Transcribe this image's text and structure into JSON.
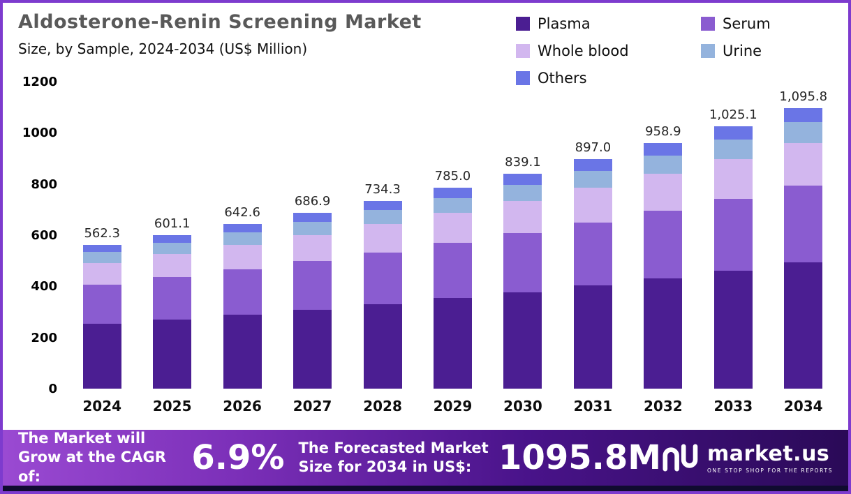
{
  "header": {
    "title": "Aldosterone-Renin Screening Market",
    "subtitle": "Size, by Sample, 2024-2034 (US$ Million)"
  },
  "chart_data": {
    "type": "bar",
    "stacked": true,
    "title": "Aldosterone-Renin Screening Market Size, by Sample, 2024-2034 (US$ Million)",
    "xlabel": "",
    "ylabel": "US$ Million",
    "ylim": [
      0,
      1200
    ],
    "yticks": [
      0,
      200,
      400,
      600,
      800,
      1000,
      1200
    ],
    "grid": false,
    "legend_position": "top-right",
    "categories": [
      "2024",
      "2025",
      "2026",
      "2027",
      "2028",
      "2029",
      "2030",
      "2031",
      "2032",
      "2033",
      "2034"
    ],
    "series": [
      {
        "name": "Plasma",
        "color": "#4b1e92",
        "values": [
          253.0,
          270.5,
          289.2,
          309.1,
          330.4,
          353.3,
          377.6,
          403.7,
          431.5,
          461.3,
          493.1
        ]
      },
      {
        "name": "Serum",
        "color": "#8a5cd0",
        "values": [
          154.6,
          165.3,
          176.7,
          188.9,
          201.9,
          215.9,
          230.8,
          246.7,
          263.7,
          281.9,
          301.3
        ]
      },
      {
        "name": "Whole blood",
        "color": "#d2b7ef",
        "values": [
          84.3,
          90.2,
          96.4,
          103.0,
          110.1,
          117.8,
          125.9,
          134.6,
          143.8,
          153.8,
          164.4
        ]
      },
      {
        "name": "Urine",
        "color": "#94b3dd",
        "values": [
          42.2,
          45.1,
          48.2,
          51.5,
          55.1,
          58.9,
          62.9,
          67.3,
          71.9,
          76.9,
          82.2
        ]
      },
      {
        "name": "Others",
        "color": "#6a75e6",
        "values": [
          28.2,
          30.0,
          32.1,
          34.4,
          36.8,
          39.1,
          41.9,
          44.7,
          48.0,
          51.2,
          54.8
        ]
      }
    ],
    "totals": [
      "562.3",
      "601.1",
      "642.6",
      "686.9",
      "734.3",
      "785.0",
      "839.1",
      "897.0",
      "958.9",
      "1,025.1",
      "1,095.8"
    ]
  },
  "footer": {
    "cagr_label": "The Market will Grow at the CAGR of:",
    "cagr_value": "6.9%",
    "forecast_label": "The Forecasted Market Size for 2034 in US$:",
    "forecast_value": "1095.8M",
    "brand": "market.us",
    "brand_tagline": "ONE STOP SHOP FOR THE REPORTS"
  }
}
